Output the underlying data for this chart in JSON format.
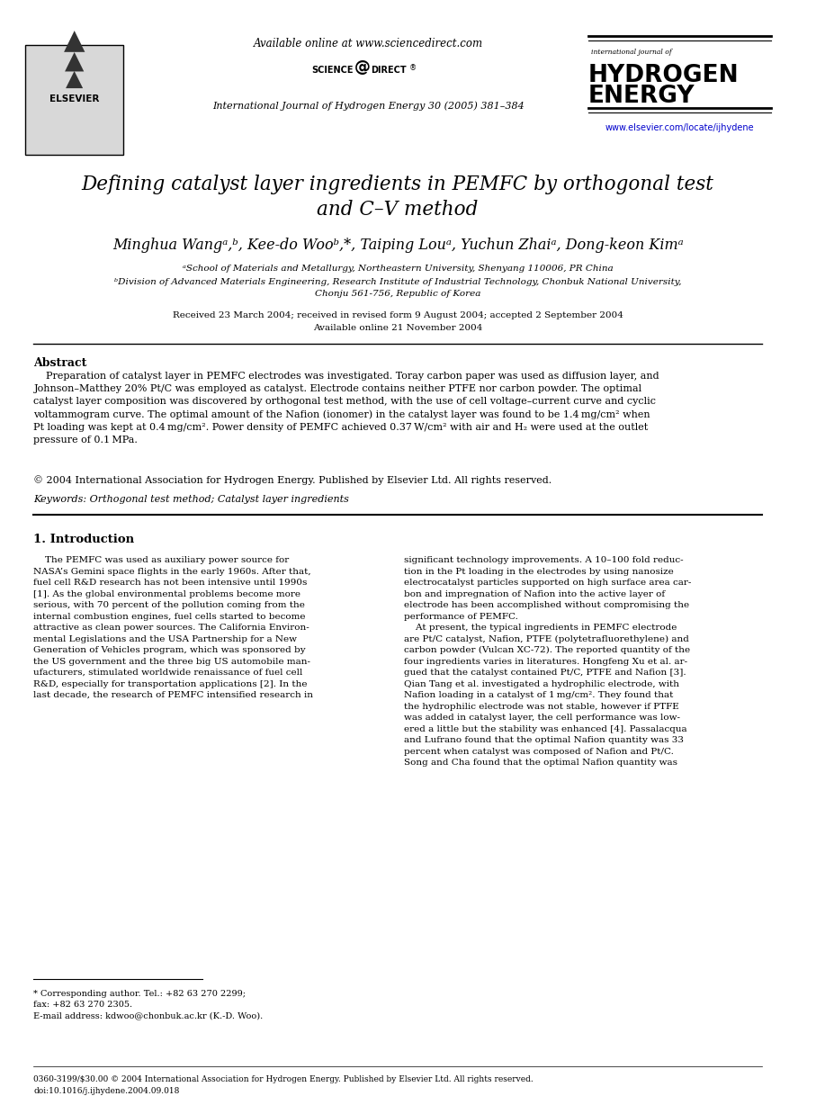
{
  "title_line1": "Defining catalyst layer ingredients in PEMFC by orthogonal test",
  "title_line2": "and C–V method",
  "journal_header": "International Journal of Hydrogen Energy 30 (2005) 381–384",
  "available_online": "Available online at www.sciencedirect.com",
  "journal_url": "www.elsevier.com/locate/ijhydene",
  "received": "Received 23 March 2004; received in revised form 9 August 2004; accepted 2 September 2004",
  "available_online2": "Available online 21 November 2004",
  "abstract_title": "Abstract",
  "copyright": "© 2004 International Association for Hydrogen Energy. Published by Elsevier Ltd. All rights reserved.",
  "keywords": "Keywords: Orthogonal test method; Catalyst layer ingredients",
  "section1_title": "1. Introduction",
  "footnote_star": "* Corresponding author. Tel.: +82 63 270 2299;",
  "footnote_fax": "fax: +82 63 270 2305.",
  "footnote_email": "E-mail address: kdwoo@chonbuk.ac.kr (K.-D. Woo).",
  "bottom_line1": "0360-3199/$30.00 © 2004 International Association for Hydrogen Energy. Published by Elsevier Ltd. All rights reserved.",
  "bottom_line2": "doi:10.1016/j.ijhydene.2004.09.018",
  "bg_color": "#ffffff",
  "text_color": "#000000",
  "blue_color": "#0000cc"
}
